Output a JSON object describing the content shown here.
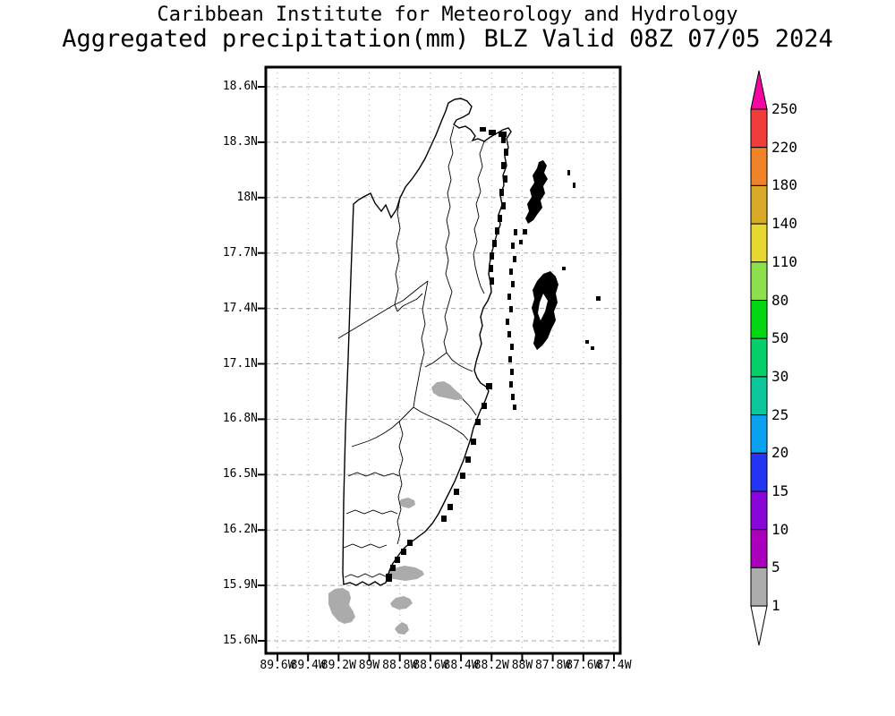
{
  "title": {
    "line1": "Caribbean Institute for Meteorology and Hydrology",
    "line2": "Aggregated precipitation(mm) BLZ Valid 08Z 07/05 2024"
  },
  "map": {
    "region_code": "BLZ",
    "lat_tick_labels": [
      "18.6N",
      "18.3N",
      "18N",
      "17.7N",
      "17.4N",
      "17.1N",
      "16.8N",
      "16.5N",
      "16.2N",
      "15.9N",
      "15.6N"
    ],
    "lon_tick_labels": [
      "89.6W",
      "89.4W",
      "89.2W",
      "89W",
      "88.8W",
      "88.6W",
      "88.4W",
      "88.2W",
      "88W",
      "87.8W",
      "87.6W",
      "87.4W"
    ],
    "grid_color": "#a8a8a8",
    "outline_color": "#000000",
    "precip_shade_color": "#ababab",
    "precip_shade_range": "1-5",
    "precip_blobs": [
      [
        [
          482,
          433
        ],
        [
          488,
          427
        ],
        [
          496,
          426
        ],
        [
          503,
          430
        ],
        [
          509,
          436
        ],
        [
          515,
          441
        ],
        [
          518,
          446
        ],
        [
          509,
          447
        ],
        [
          500,
          445
        ],
        [
          490,
          443
        ],
        [
          484,
          439
        ]
      ],
      [
        [
          448,
          558
        ],
        [
          456,
          556
        ],
        [
          463,
          559
        ],
        [
          464,
          564
        ],
        [
          457,
          568
        ],
        [
          449,
          566
        ],
        [
          446,
          562
        ]
      ],
      [
        [
          432,
          641
        ],
        [
          440,
          635
        ],
        [
          452,
          632
        ],
        [
          464,
          634
        ],
        [
          472,
          638
        ],
        [
          474,
          642
        ],
        [
          466,
          647
        ],
        [
          453,
          649
        ],
        [
          440,
          647
        ],
        [
          434,
          645
        ]
      ],
      [
        [
          367,
          663
        ],
        [
          374,
          658
        ],
        [
          383,
          657
        ],
        [
          390,
          661
        ],
        [
          392,
          668
        ],
        [
          390,
          676
        ],
        [
          394,
          682
        ],
        [
          397,
          689
        ],
        [
          393,
          695
        ],
        [
          385,
          697
        ],
        [
          378,
          694
        ],
        [
          371,
          686
        ],
        [
          367,
          675
        ]
      ],
      [
        [
          436,
          674
        ],
        [
          442,
          668
        ],
        [
          451,
          666
        ],
        [
          458,
          669
        ],
        [
          461,
          674
        ],
        [
          454,
          680
        ],
        [
          445,
          681
        ],
        [
          438,
          678
        ]
      ],
      [
        [
          443,
          700
        ],
        [
          449,
          695
        ],
        [
          455,
          698
        ],
        [
          457,
          704
        ],
        [
          452,
          709
        ],
        [
          445,
          708
        ],
        [
          441,
          703
        ]
      ]
    ]
  },
  "colorbar": {
    "boundary_labels": [
      "250",
      "220",
      "180",
      "140",
      "110",
      "80",
      "50",
      "30",
      "25",
      "20",
      "15",
      "10",
      "5",
      "1"
    ],
    "segment_colors_top_to_bottom": [
      "#f23c3c",
      "#f08228",
      "#d9a929",
      "#e6d731",
      "#8ddf4e",
      "#02d813",
      "#04d06a",
      "#0bc89c",
      "#0aa2f0",
      "#2334f2",
      "#8806d8",
      "#aa00be",
      "#acacac"
    ],
    "above_max_color": "#f2079f",
    "below_min_color": "#ffffff",
    "units": "mm"
  }
}
